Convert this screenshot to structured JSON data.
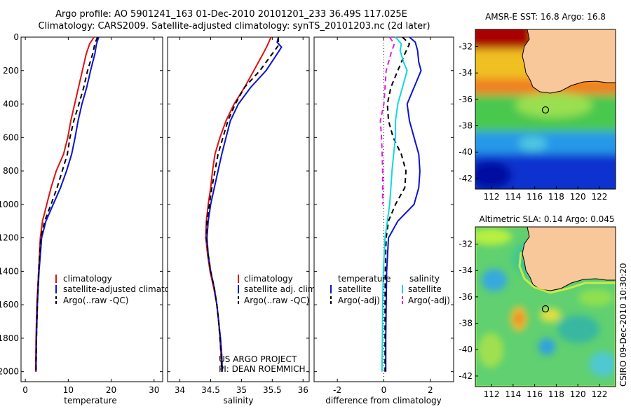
{
  "header": {
    "line1": "Argo profile: AO 5901241_163 01-Dec-2010 20101201_233 36.49S 117.025E",
    "line2": "Climatology: CARS2009. Satellite-adjusted climatology: synTS_20101203.nc (2d later)"
  },
  "colors": {
    "climatology": "#e01010",
    "satellite": "#0a14d0",
    "argo": "#000000",
    "salinity_sat": "#10d8e0",
    "salinity_argo": "#e020e0",
    "land": "#f8c79a"
  },
  "chart_data": [
    {
      "type": "line",
      "xlabel": "temperature",
      "xlim": [
        -1,
        32
      ],
      "ylim": [
        0,
        2060
      ],
      "xticks": [
        0,
        10,
        20,
        30
      ],
      "yticks": [
        0,
        200,
        400,
        600,
        800,
        1000,
        1200,
        1400,
        1600,
        1800,
        2000
      ],
      "legend_placement": "center-right",
      "series": [
        {
          "name": "climatology",
          "style": "solid",
          "color": "#e01010",
          "points": [
            [
              16,
              0
            ],
            [
              15,
              40
            ],
            [
              14.2,
              100
            ],
            [
              13.3,
              200
            ],
            [
              12.4,
              300
            ],
            [
              11.5,
              400
            ],
            [
              10.6,
              500
            ],
            [
              9.9,
              600
            ],
            [
              8.9,
              700
            ],
            [
              7.2,
              800
            ],
            [
              6,
              900
            ],
            [
              5,
              1000
            ],
            [
              4,
              1100
            ],
            [
              3.5,
              1200
            ],
            [
              3.1,
              1400
            ],
            [
              2.7,
              1600
            ],
            [
              2.5,
              1800
            ],
            [
              2.4,
              2000
            ]
          ]
        },
        {
          "name": "satellite-adjusted climatology",
          "style": "solid",
          "color": "#0a14d0",
          "points": [
            [
              17.1,
              0
            ],
            [
              16.6,
              40
            ],
            [
              16.2,
              100
            ],
            [
              15.2,
              200
            ],
            [
              14.3,
              300
            ],
            [
              13.2,
              400
            ],
            [
              12.3,
              500
            ],
            [
              11.6,
              600
            ],
            [
              10.8,
              700
            ],
            [
              9.6,
              800
            ],
            [
              8.2,
              900
            ],
            [
              6.5,
              1000
            ],
            [
              4.8,
              1100
            ],
            [
              3.8,
              1200
            ],
            [
              3.2,
              1400
            ],
            [
              2.8,
              1600
            ],
            [
              2.6,
              1800
            ],
            [
              2.5,
              2000
            ]
          ]
        },
        {
          "name": "Argo(..raw -QC)",
          "style": "dashed",
          "color": "#000000",
          "points": [
            [
              16.8,
              0
            ],
            [
              16.2,
              40
            ],
            [
              15.7,
              100
            ],
            [
              14.5,
              200
            ],
            [
              13.6,
              300
            ],
            [
              12.5,
              400
            ],
            [
              11.3,
              500
            ],
            [
              10.4,
              600
            ],
            [
              9.8,
              700
            ],
            [
              8.6,
              800
            ],
            [
              7.4,
              900
            ],
            [
              6,
              1000
            ],
            [
              4.5,
              1100
            ],
            [
              3.6,
              1200
            ],
            [
              3.1,
              1400
            ],
            [
              2.8,
              1600
            ],
            [
              2.6,
              1800
            ],
            [
              2.5,
              2000
            ]
          ]
        }
      ]
    },
    {
      "type": "line",
      "xlabel": "salinity",
      "xlim": [
        33.8,
        36.1
      ],
      "ylim": [
        0,
        2060
      ],
      "xticks": [
        34,
        34.5,
        35,
        35.5,
        36
      ],
      "legend_placement": "center-right",
      "series": [
        {
          "name": "climatology",
          "style": "solid",
          "color": "#e01010",
          "points": [
            [
              35.48,
              0
            ],
            [
              35.42,
              50
            ],
            [
              35.35,
              100
            ],
            [
              35.2,
              200
            ],
            [
              35.05,
              300
            ],
            [
              34.88,
              400
            ],
            [
              34.75,
              500
            ],
            [
              34.65,
              600
            ],
            [
              34.57,
              700
            ],
            [
              34.53,
              800
            ],
            [
              34.5,
              900
            ],
            [
              34.46,
              1000
            ],
            [
              34.43,
              1100
            ],
            [
              34.42,
              1200
            ],
            [
              34.45,
              1300
            ],
            [
              34.49,
              1400
            ],
            [
              34.55,
              1500
            ],
            [
              34.6,
              1600
            ],
            [
              34.63,
              1700
            ],
            [
              34.65,
              1800
            ],
            [
              34.67,
              1900
            ],
            [
              34.68,
              2000
            ]
          ]
        },
        {
          "name": "satellite adj. clim.",
          "style": "solid",
          "color": "#0a14d0",
          "points": [
            [
              35.6,
              0
            ],
            [
              35.58,
              30
            ],
            [
              35.65,
              60
            ],
            [
              35.58,
              100
            ],
            [
              35.4,
              200
            ],
            [
              35.15,
              300
            ],
            [
              34.95,
              400
            ],
            [
              34.82,
              500
            ],
            [
              34.75,
              600
            ],
            [
              34.68,
              700
            ],
            [
              34.62,
              800
            ],
            [
              34.56,
              900
            ],
            [
              34.5,
              1000
            ],
            [
              34.46,
              1100
            ],
            [
              34.44,
              1200
            ],
            [
              34.46,
              1300
            ],
            [
              34.5,
              1400
            ],
            [
              34.56,
              1500
            ],
            [
              34.6,
              1600
            ],
            [
              34.63,
              1700
            ],
            [
              34.66,
              1800
            ],
            [
              34.68,
              1900
            ],
            [
              34.69,
              2000
            ]
          ]
        },
        {
          "name": "Argo(..raw -QC)",
          "style": "dashed",
          "color": "#000000",
          "points": [
            [
              35.6,
              0
            ],
            [
              35.6,
              50
            ],
            [
              35.5,
              100
            ],
            [
              35.3,
              200
            ],
            [
              35.05,
              300
            ],
            [
              34.9,
              400
            ],
            [
              34.78,
              500
            ],
            [
              34.7,
              600
            ],
            [
              34.62,
              700
            ],
            [
              34.57,
              800
            ],
            [
              34.52,
              900
            ],
            [
              34.48,
              1000
            ],
            [
              34.44,
              1100
            ],
            [
              34.43,
              1200
            ],
            [
              34.46,
              1300
            ],
            [
              34.5,
              1400
            ],
            [
              34.56,
              1500
            ],
            [
              34.6,
              1600
            ],
            [
              34.63,
              1700
            ],
            [
              34.65,
              1800
            ],
            [
              34.67,
              1900
            ],
            [
              34.68,
              2000
            ]
          ]
        }
      ],
      "annotation": {
        "line1": "US ARGO PROJECT",
        "line2": "PI: DEAN ROEMMICH"
      }
    },
    {
      "type": "line",
      "xlabel": "difference from climatology",
      "xlim": [
        -3,
        3
      ],
      "ylim": [
        0,
        2060
      ],
      "xticks": [
        -2,
        0,
        2
      ],
      "zero_line": "dotted",
      "legend_placement": "center-right",
      "legend_group_titles": {
        "temperature": "temperature",
        "salinity": "salinity"
      },
      "series": [
        {
          "name": "satellite",
          "group": "temperature",
          "style": "solid",
          "color": "#0a14d0",
          "points": [
            [
              1.1,
              0
            ],
            [
              1.35,
              30
            ],
            [
              1.45,
              80
            ],
            [
              1.5,
              150
            ],
            [
              1.6,
              200
            ],
            [
              1.3,
              300
            ],
            [
              1.0,
              400
            ],
            [
              1.1,
              500
            ],
            [
              1.3,
              600
            ],
            [
              1.5,
              700
            ],
            [
              1.55,
              800
            ],
            [
              1.5,
              900
            ],
            [
              1.3,
              1000
            ],
            [
              0.6,
              1100
            ],
            [
              0.2,
              1200
            ],
            [
              0.12,
              1400
            ],
            [
              0.1,
              1600
            ],
            [
              0.08,
              1800
            ],
            [
              0.08,
              2000
            ]
          ]
        },
        {
          "name": "Argo(-adj)",
          "group": "temperature",
          "style": "dashed",
          "color": "#000000",
          "points": [
            [
              0.8,
              0
            ],
            [
              1.1,
              40
            ],
            [
              0.9,
              100
            ],
            [
              0.6,
              200
            ],
            [
              0.3,
              300
            ],
            [
              0.15,
              400
            ],
            [
              0.2,
              500
            ],
            [
              0.4,
              600
            ],
            [
              0.75,
              700
            ],
            [
              0.95,
              800
            ],
            [
              0.9,
              900
            ],
            [
              0.5,
              1000
            ],
            [
              0.2,
              1100
            ],
            [
              0.1,
              1200
            ],
            [
              0.06,
              1400
            ],
            [
              0.05,
              1600
            ],
            [
              0.05,
              1800
            ],
            [
              0.05,
              2000
            ]
          ]
        },
        {
          "name": "satellite",
          "group": "salinity",
          "style": "solid",
          "color": "#10d8e0",
          "points": [
            [
              0.5,
              0
            ],
            [
              0.75,
              40
            ],
            [
              0.7,
              80
            ],
            [
              0.85,
              150
            ],
            [
              1.0,
              200
            ],
            [
              0.8,
              300
            ],
            [
              0.6,
              400
            ],
            [
              0.5,
              500
            ],
            [
              0.5,
              600
            ],
            [
              0.42,
              700
            ],
            [
              0.35,
              800
            ],
            [
              0.3,
              900
            ],
            [
              0.25,
              1000
            ],
            [
              0.15,
              1100
            ],
            [
              0.05,
              1200
            ],
            [
              -0.02,
              1400
            ],
            [
              -0.05,
              1600
            ],
            [
              -0.06,
              1800
            ],
            [
              -0.08,
              2000
            ]
          ]
        },
        {
          "name": "Argo(-adj)",
          "group": "salinity",
          "style": "dashed",
          "color": "#e020e0",
          "points": [
            [
              0.25,
              0
            ],
            [
              0.45,
              40
            ],
            [
              0.3,
              100
            ],
            [
              0.1,
              200
            ],
            [
              0.05,
              300
            ],
            [
              0.0,
              400
            ],
            [
              -0.15,
              500
            ],
            [
              -0.1,
              600
            ],
            [
              -0.05,
              800
            ],
            [
              -0.05,
              1000
            ]
          ]
        }
      ]
    }
  ],
  "maps": [
    {
      "title": "AMSR-E SST: 16.8 Argo: 16.8",
      "xticks": [
        "112",
        "114",
        "116",
        "118",
        "120",
        "122"
      ],
      "yticks": [
        "-32",
        "-34",
        "-36",
        "-38",
        "-40",
        "-42"
      ],
      "lon_range": [
        110.5,
        123.5
      ],
      "lat_range": [
        -42.8,
        -30.7
      ],
      "colormap": "jet",
      "argo_marker": {
        "lon": 117.0,
        "lat": -36.5
      }
    },
    {
      "title": "Altimetric SLA: 0.14 Argo: 0.045",
      "xticks": [
        "112",
        "114",
        "116",
        "118",
        "120",
        "122"
      ],
      "yticks": [
        "-32",
        "-34",
        "-36",
        "-38",
        "-40",
        "-42"
      ],
      "lon_range": [
        110.5,
        123.5
      ],
      "lat_range": [
        -42.8,
        -30.7
      ],
      "colormap": "jet",
      "argo_marker": {
        "lon": 117.0,
        "lat": -36.5
      }
    }
  ],
  "credit": "CSIRO 09-Dec-2010 10:30:20",
  "legends": {
    "temperature": [
      "climatology",
      "satellite-adjusted climatology",
      "Argo(..raw -QC)"
    ],
    "salinity": [
      "climatology",
      "satellite adj. clim.",
      "Argo(..raw -QC)"
    ],
    "difference": {
      "temperature_title": "temperature",
      "salinity_title": "salinity",
      "t_items": [
        "satellite",
        "Argo(-adj)"
      ],
      "s_items": [
        "satellite",
        "Argo(-adj)"
      ]
    }
  }
}
